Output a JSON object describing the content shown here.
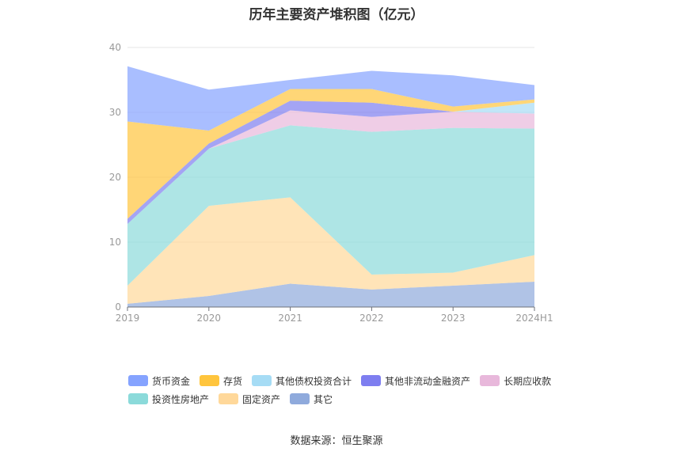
{
  "chart_data": {
    "type": "area",
    "title": "历年主要资产堆积图（亿元）",
    "categories": [
      "2019",
      "2020",
      "2021",
      "2022",
      "2023",
      "2024H1"
    ],
    "ylim": [
      0,
      40
    ],
    "yticks": [
      0,
      10,
      20,
      30,
      40
    ],
    "stacked": true,
    "grid": true,
    "legend_position": "bottom",
    "series": [
      {
        "name": "其它",
        "color": "#8faadc",
        "values": [
          0.5,
          1.7,
          3.6,
          2.7,
          3.3,
          3.9
        ]
      },
      {
        "name": "固定资产",
        "color": "#ffd89a",
        "values": [
          2.8,
          13.9,
          13.3,
          2.3,
          2.0,
          4.1
        ]
      },
      {
        "name": "投资性房地产",
        "color": "#8bdada",
        "values": [
          9.5,
          8.8,
          11.1,
          22.0,
          22.3,
          19.5
        ]
      },
      {
        "name": "长期应收款",
        "color": "#e8b8db",
        "values": [
          0.0,
          0.0,
          2.3,
          2.3,
          2.5,
          2.3
        ]
      },
      {
        "name": "其他非流动金融资产",
        "color": "#7e7ef0",
        "values": [
          0.8,
          0.8,
          1.5,
          2.2,
          0.0,
          0.0
        ]
      },
      {
        "name": "其他债权投资合计",
        "color": "#a6dcf5",
        "values": [
          0.0,
          0.0,
          0.0,
          0.0,
          0.0,
          1.7
        ]
      },
      {
        "name": "存货",
        "color": "#ffc53d",
        "values": [
          15.0,
          2.0,
          1.8,
          2.1,
          0.8,
          0.5
        ]
      },
      {
        "name": "货币资金",
        "color": "#85a3ff",
        "values": [
          8.5,
          6.3,
          1.4,
          2.8,
          4.8,
          2.2
        ]
      }
    ]
  },
  "legend": {
    "items": [
      {
        "label": "货币资金",
        "color": "#85a3ff"
      },
      {
        "label": "存货",
        "color": "#ffc53d"
      },
      {
        "label": "其他债权投资合计",
        "color": "#a6dcf5"
      },
      {
        "label": "其他非流动金融资产",
        "color": "#7e7ef0"
      },
      {
        "label": "长期应收款",
        "color": "#e8b8db"
      },
      {
        "label": "投资性房地产",
        "color": "#8bdada"
      },
      {
        "label": "固定资产",
        "color": "#ffd89a"
      },
      {
        "label": "其它",
        "color": "#8faadc"
      }
    ]
  },
  "source": "数据来源：恒生聚源"
}
